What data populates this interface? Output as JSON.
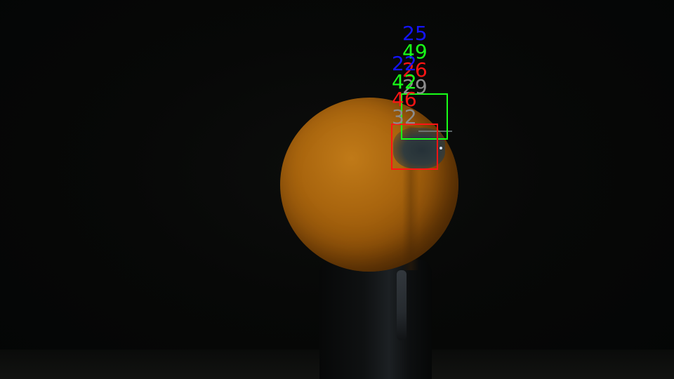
{
  "colors": {
    "blue": "#1414ff",
    "green": "#18ff18",
    "red": "#ff1414",
    "gray": "#8c8c8c"
  },
  "detections": [
    {
      "label": "25",
      "color": "blue"
    },
    {
      "label": "49",
      "color": "green"
    },
    {
      "label": "26",
      "color": "red"
    },
    {
      "label": "22",
      "color": "blue"
    },
    {
      "label": "29",
      "color": "gray"
    },
    {
      "label": "42",
      "color": "green"
    },
    {
      "label": "46",
      "color": "red"
    },
    {
      "label": "32",
      "color": "gray"
    }
  ],
  "boxes": [
    {
      "color": "green"
    },
    {
      "color": "red"
    }
  ]
}
